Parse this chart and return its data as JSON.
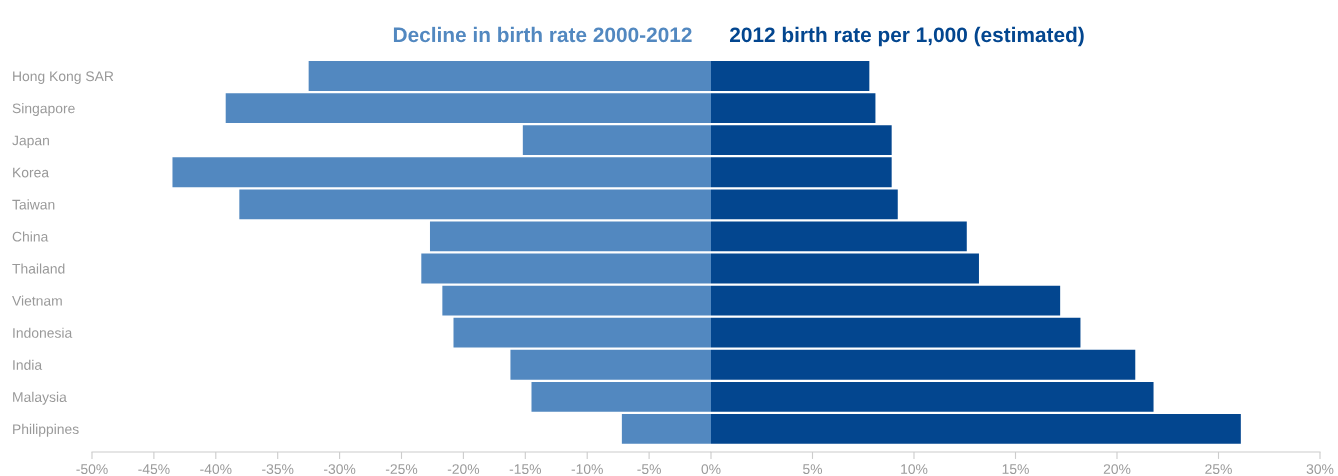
{
  "chart_data": [
    {
      "type": "bar",
      "orientation": "horizontal",
      "title": "Decline in birth rate 2000-2012",
      "categories": [
        "Hong Kong SAR",
        "Singapore",
        "Japan",
        "Korea",
        "Taiwan",
        "China",
        "Thailand",
        "Vietnam",
        "Indonesia",
        "India",
        "Malaysia",
        "Philippines"
      ],
      "series": [
        {
          "color": "#5288c0",
          "values": [
            -32.5,
            -39.2,
            -15.2,
            -43.5,
            -38.1,
            -22.7,
            -23.4,
            -21.7,
            -20.8,
            -16.2,
            -14.5,
            -7.2
          ]
        }
      ],
      "xlim": [
        -50,
        0
      ],
      "xticks": [
        {
          "value": -50,
          "label": "-50%"
        },
        {
          "value": -45,
          "label": "-45%"
        },
        {
          "value": -40,
          "label": "-40%"
        },
        {
          "value": -35,
          "label": "-35%"
        },
        {
          "value": -30,
          "label": "-30%"
        },
        {
          "value": -25,
          "label": "-25%"
        },
        {
          "value": -20,
          "label": "-20%"
        },
        {
          "value": -15,
          "label": "-15%"
        },
        {
          "value": -10,
          "label": "-10%"
        },
        {
          "value": -5,
          "label": "-5%"
        },
        {
          "value": 0,
          "label": "0%"
        }
      ],
      "grid": false,
      "legend": false
    },
    {
      "type": "bar",
      "orientation": "horizontal",
      "title": "2012 birth rate per 1,000 (estimated)",
      "categories": [
        "Hong Kong SAR",
        "Singapore",
        "Japan",
        "Korea",
        "Taiwan",
        "China",
        "Thailand",
        "Vietnam",
        "Indonesia",
        "India",
        "Malaysia",
        "Philippines"
      ],
      "series": [
        {
          "color": "#03468f",
          "values": [
            7.8,
            8.1,
            8.9,
            8.9,
            9.2,
            12.6,
            13.2,
            17.2,
            18.2,
            20.9,
            21.8,
            26.1
          ]
        }
      ],
      "xlim": [
        0,
        30
      ],
      "xticks": [
        {
          "value": 5,
          "label": "5%"
        },
        {
          "value": 10,
          "label": "10%"
        },
        {
          "value": 15,
          "label": "15%"
        },
        {
          "value": 20,
          "label": "20%"
        },
        {
          "value": 25,
          "label": "25%"
        },
        {
          "value": 30,
          "label": "30%"
        }
      ],
      "tick_labels": "x",
      "grid": false,
      "legend": false
    }
  ]
}
